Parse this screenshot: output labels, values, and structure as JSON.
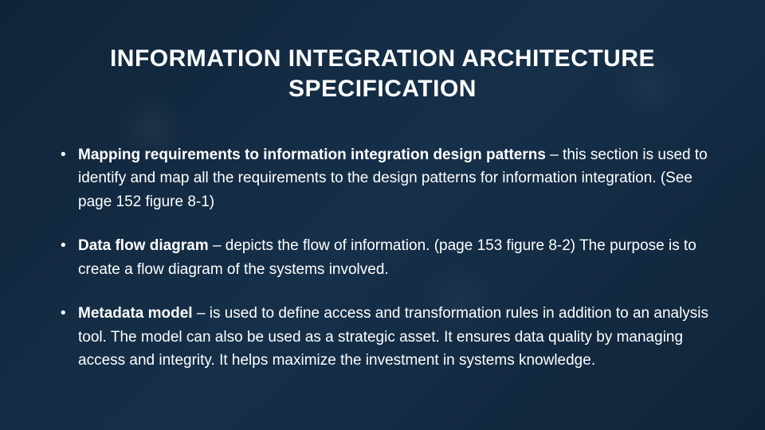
{
  "slide": {
    "background_color": "#122b42",
    "text_color": "#ffffff",
    "title": "INFORMATION INTEGRATION ARCHITECTURE SPECIFICATION",
    "title_fontsize": 30,
    "title_weight": 700,
    "body_fontsize": 19,
    "line_height": 1.55,
    "bullets": [
      {
        "lead": "Mapping requirements to information integration design patterns",
        "rest": " – this section is used to identify and map all the requirements to the design patterns for information integration.  (See page 152 figure 8-1)"
      },
      {
        "lead": "Data flow diagram",
        "rest": " – depicts the flow of information. (page 153 figure 8-2) The purpose is to create a flow diagram of the systems involved."
      },
      {
        "lead": "Metadata model",
        "rest": " – is used to define access and transformation rules in addition to an analysis tool. The model can also be used as a strategic asset. It ensures data quality by managing access and integrity. It helps maximize the investment in systems knowledge."
      }
    ]
  }
}
